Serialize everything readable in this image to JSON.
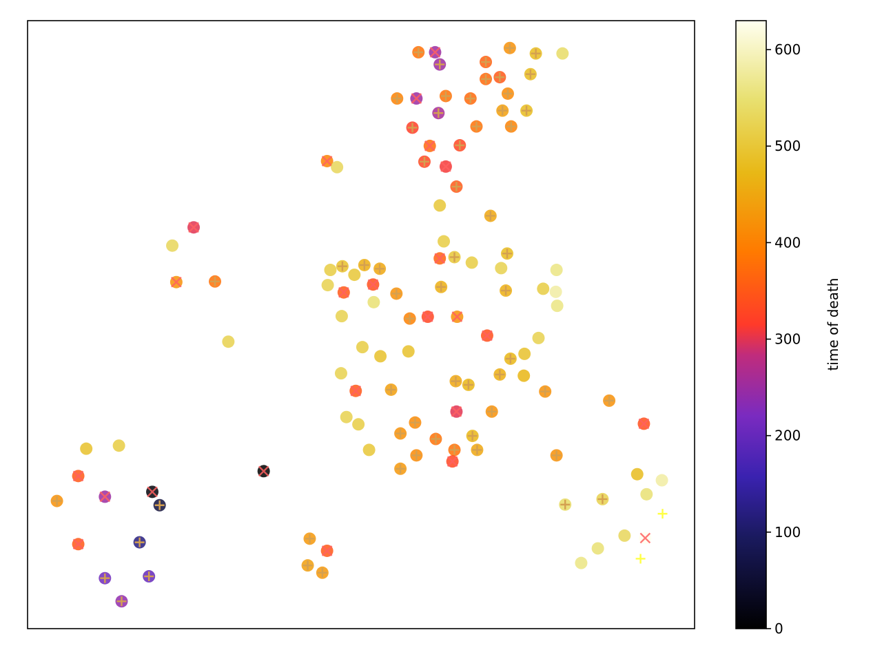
{
  "chart_data": {
    "type": "scatter",
    "title": "",
    "xlabel": "",
    "ylabel": "",
    "xlim": [
      0,
      1000
    ],
    "ylim": [
      0,
      1000
    ],
    "x_ticks_visible": false,
    "y_ticks_visible": false,
    "grid": false,
    "legend": "none",
    "colormap": "gnuplot2-like (black → blue → purple → red → orange → yellow → white)",
    "colorbar": {
      "label": "time of death",
      "range": [
        0,
        630
      ],
      "ticks": [
        "0",
        "100",
        "200",
        "300",
        "400",
        "500",
        "600"
      ],
      "tick_values": [
        0,
        100,
        200,
        300,
        400,
        500,
        600
      ]
    },
    "marker_legend": {
      "circle": "node (colored by time of death)",
      "plus": "survived marker",
      "x": "died marker"
    },
    "points": [
      {
        "x": 586,
        "y": 948,
        "t": 380,
        "m": "+"
      },
      {
        "x": 611,
        "y": 948,
        "t": 250,
        "m": "x"
      },
      {
        "x": 618,
        "y": 928,
        "t": 250,
        "m": "+"
      },
      {
        "x": 723,
        "y": 955,
        "t": 420,
        "m": "+"
      },
      {
        "x": 762,
        "y": 946,
        "t": 480,
        "m": "+"
      },
      {
        "x": 802,
        "y": 946,
        "t": 540,
        "m": ""
      },
      {
        "x": 687,
        "y": 932,
        "t": 360,
        "m": "+"
      },
      {
        "x": 687,
        "y": 904,
        "t": 370,
        "m": "+"
      },
      {
        "x": 708,
        "y": 907,
        "t": 350,
        "m": "+"
      },
      {
        "x": 754,
        "y": 912,
        "t": 480,
        "m": "+"
      },
      {
        "x": 720,
        "y": 880,
        "t": 410,
        "m": "+"
      },
      {
        "x": 554,
        "y": 872,
        "t": 400,
        "m": "+"
      },
      {
        "x": 583,
        "y": 872,
        "t": 250,
        "m": "x"
      },
      {
        "x": 627,
        "y": 876,
        "t": 380,
        "m": "+"
      },
      {
        "x": 664,
        "y": 872,
        "t": 370,
        "m": "+"
      },
      {
        "x": 616,
        "y": 848,
        "t": 260,
        "m": "+"
      },
      {
        "x": 712,
        "y": 852,
        "t": 440,
        "m": "+"
      },
      {
        "x": 748,
        "y": 852,
        "t": 480,
        "m": "+"
      },
      {
        "x": 577,
        "y": 824,
        "t": 320,
        "m": "+"
      },
      {
        "x": 673,
        "y": 826,
        "t": 380,
        "m": "+"
      },
      {
        "x": 725,
        "y": 826,
        "t": 400,
        "m": "+"
      },
      {
        "x": 603,
        "y": 794,
        "t": 370,
        "m": "x"
      },
      {
        "x": 648,
        "y": 795,
        "t": 330,
        "m": "+"
      },
      {
        "x": 449,
        "y": 769,
        "t": 400,
        "m": "x"
      },
      {
        "x": 464,
        "y": 759,
        "t": 530,
        "m": ""
      },
      {
        "x": 595,
        "y": 768,
        "t": 330,
        "m": "+"
      },
      {
        "x": 627,
        "y": 760,
        "t": 310,
        "m": "x"
      },
      {
        "x": 643,
        "y": 727,
        "t": 350,
        "m": "+"
      },
      {
        "x": 618,
        "y": 696,
        "t": 500,
        "m": ""
      },
      {
        "x": 694,
        "y": 679,
        "t": 450,
        "m": "+"
      },
      {
        "x": 249,
        "y": 660,
        "t": 300,
        "m": "x"
      },
      {
        "x": 217,
        "y": 630,
        "t": 530,
        "m": ""
      },
      {
        "x": 624,
        "y": 637,
        "t": 510,
        "m": ""
      },
      {
        "x": 719,
        "y": 617,
        "t": 480,
        "m": "+"
      },
      {
        "x": 618,
        "y": 609,
        "t": 360,
        "m": "x"
      },
      {
        "x": 640,
        "y": 611,
        "t": 500,
        "m": "+"
      },
      {
        "x": 454,
        "y": 590,
        "t": 510,
        "m": ""
      },
      {
        "x": 472,
        "y": 596,
        "t": 490,
        "m": "+"
      },
      {
        "x": 505,
        "y": 598,
        "t": 460,
        "m": "+"
      },
      {
        "x": 528,
        "y": 592,
        "t": 450,
        "m": "+"
      },
      {
        "x": 666,
        "y": 602,
        "t": 510,
        "m": ""
      },
      {
        "x": 710,
        "y": 593,
        "t": 520,
        "m": ""
      },
      {
        "x": 793,
        "y": 590,
        "t": 560,
        "m": ""
      },
      {
        "x": 490,
        "y": 582,
        "t": 500,
        "m": ""
      },
      {
        "x": 223,
        "y": 570,
        "t": 420,
        "m": "x"
      },
      {
        "x": 281,
        "y": 571,
        "t": 380,
        "m": "+"
      },
      {
        "x": 450,
        "y": 565,
        "t": 520,
        "m": ""
      },
      {
        "x": 518,
        "y": 566,
        "t": 340,
        "m": "x"
      },
      {
        "x": 620,
        "y": 562,
        "t": 460,
        "m": "+"
      },
      {
        "x": 717,
        "y": 556,
        "t": 460,
        "m": "+"
      },
      {
        "x": 773,
        "y": 559,
        "t": 510,
        "m": ""
      },
      {
        "x": 792,
        "y": 554,
        "t": 580,
        "m": ""
      },
      {
        "x": 474,
        "y": 553,
        "t": 350,
        "m": "x"
      },
      {
        "x": 553,
        "y": 551,
        "t": 420,
        "m": "+"
      },
      {
        "x": 519,
        "y": 537,
        "t": 550,
        "m": ""
      },
      {
        "x": 794,
        "y": 531,
        "t": 560,
        "m": ""
      },
      {
        "x": 471,
        "y": 514,
        "t": 520,
        "m": ""
      },
      {
        "x": 573,
        "y": 510,
        "t": 400,
        "m": "+"
      },
      {
        "x": 600,
        "y": 513,
        "t": 330,
        "m": "x"
      },
      {
        "x": 644,
        "y": 513,
        "t": 420,
        "m": "x"
      },
      {
        "x": 301,
        "y": 472,
        "t": 520,
        "m": ""
      },
      {
        "x": 689,
        "y": 482,
        "t": 340,
        "m": "x"
      },
      {
        "x": 766,
        "y": 478,
        "t": 520,
        "m": ""
      },
      {
        "x": 502,
        "y": 463,
        "t": 510,
        "m": ""
      },
      {
        "x": 529,
        "y": 448,
        "t": 490,
        "m": ""
      },
      {
        "x": 571,
        "y": 456,
        "t": 490,
        "m": ""
      },
      {
        "x": 724,
        "y": 444,
        "t": 470,
        "m": "+"
      },
      {
        "x": 745,
        "y": 452,
        "t": 490,
        "m": ""
      },
      {
        "x": 470,
        "y": 420,
        "t": 520,
        "m": ""
      },
      {
        "x": 642,
        "y": 407,
        "t": 450,
        "m": "+"
      },
      {
        "x": 661,
        "y": 401,
        "t": 470,
        "m": "+"
      },
      {
        "x": 708,
        "y": 418,
        "t": 460,
        "m": "+"
      },
      {
        "x": 744,
        "y": 416,
        "t": 470,
        "m": ""
      },
      {
        "x": 492,
        "y": 391,
        "t": 350,
        "m": "x"
      },
      {
        "x": 545,
        "y": 393,
        "t": 440,
        "m": "+"
      },
      {
        "x": 776,
        "y": 390,
        "t": 420,
        "m": "+"
      },
      {
        "x": 872,
        "y": 375,
        "t": 420,
        "m": "+"
      },
      {
        "x": 643,
        "y": 357,
        "t": 300,
        "m": "x"
      },
      {
        "x": 696,
        "y": 357,
        "t": 420,
        "m": "+"
      },
      {
        "x": 478,
        "y": 348,
        "t": 520,
        "m": ""
      },
      {
        "x": 496,
        "y": 336,
        "t": 510,
        "m": ""
      },
      {
        "x": 559,
        "y": 321,
        "t": 420,
        "m": "+"
      },
      {
        "x": 581,
        "y": 339,
        "t": 410,
        "m": "+"
      },
      {
        "x": 667,
        "y": 317,
        "t": 470,
        "m": "+"
      },
      {
        "x": 612,
        "y": 312,
        "t": 380,
        "m": "+"
      },
      {
        "x": 512,
        "y": 294,
        "t": 500,
        "m": ""
      },
      {
        "x": 640,
        "y": 294,
        "t": 380,
        "m": "+"
      },
      {
        "x": 674,
        "y": 294,
        "t": 450,
        "m": "+"
      },
      {
        "x": 583,
        "y": 285,
        "t": 410,
        "m": "+"
      },
      {
        "x": 637,
        "y": 275,
        "t": 330,
        "m": "x"
      },
      {
        "x": 559,
        "y": 263,
        "t": 430,
        "m": "+"
      },
      {
        "x": 793,
        "y": 285,
        "t": 420,
        "m": "+"
      },
      {
        "x": 924,
        "y": 337,
        "t": 340,
        "m": "x"
      },
      {
        "x": 88,
        "y": 296,
        "t": 490,
        "m": ""
      },
      {
        "x": 137,
        "y": 301,
        "t": 510,
        "m": ""
      },
      {
        "x": 76,
        "y": 251,
        "t": 350,
        "m": "x"
      },
      {
        "x": 354,
        "y": 259,
        "t": 0,
        "m": "x"
      },
      {
        "x": 116,
        "y": 217,
        "t": 250,
        "m": "x"
      },
      {
        "x": 187,
        "y": 225,
        "t": 10,
        "m": "x"
      },
      {
        "x": 198,
        "y": 203,
        "t": 60,
        "m": "+"
      },
      {
        "x": 44,
        "y": 210,
        "t": 420,
        "m": "+"
      },
      {
        "x": 914,
        "y": 254,
        "t": 480,
        "m": ""
      },
      {
        "x": 951,
        "y": 244,
        "t": 580,
        "m": ""
      },
      {
        "x": 928,
        "y": 221,
        "t": 550,
        "m": ""
      },
      {
        "x": 806,
        "y": 204,
        "t": 540,
        "m": "+"
      },
      {
        "x": 862,
        "y": 213,
        "t": 520,
        "m": "+"
      },
      {
        "x": 952,
        "y": 189,
        "t": 600,
        "m": "+"
      },
      {
        "x": 168,
        "y": 142,
        "t": 120,
        "m": "+"
      },
      {
        "x": 76,
        "y": 139,
        "t": 350,
        "m": "x"
      },
      {
        "x": 423,
        "y": 148,
        "t": 430,
        "m": "+"
      },
      {
        "x": 449,
        "y": 128,
        "t": 350,
        "m": "x"
      },
      {
        "x": 895,
        "y": 153,
        "t": 530,
        "m": ""
      },
      {
        "x": 855,
        "y": 132,
        "t": 550,
        "m": ""
      },
      {
        "x": 926,
        "y": 149,
        "t": 630,
        "m": "x"
      },
      {
        "x": 919,
        "y": 115,
        "t": 630,
        "m": "+"
      },
      {
        "x": 420,
        "y": 104,
        "t": 440,
        "m": "+"
      },
      {
        "x": 442,
        "y": 92,
        "t": 430,
        "m": "+"
      },
      {
        "x": 830,
        "y": 108,
        "t": 560,
        "m": ""
      },
      {
        "x": 116,
        "y": 83,
        "t": 210,
        "m": "+"
      },
      {
        "x": 182,
        "y": 86,
        "t": 200,
        "m": "+"
      },
      {
        "x": 141,
        "y": 45,
        "t": 240,
        "m": "+"
      }
    ]
  }
}
